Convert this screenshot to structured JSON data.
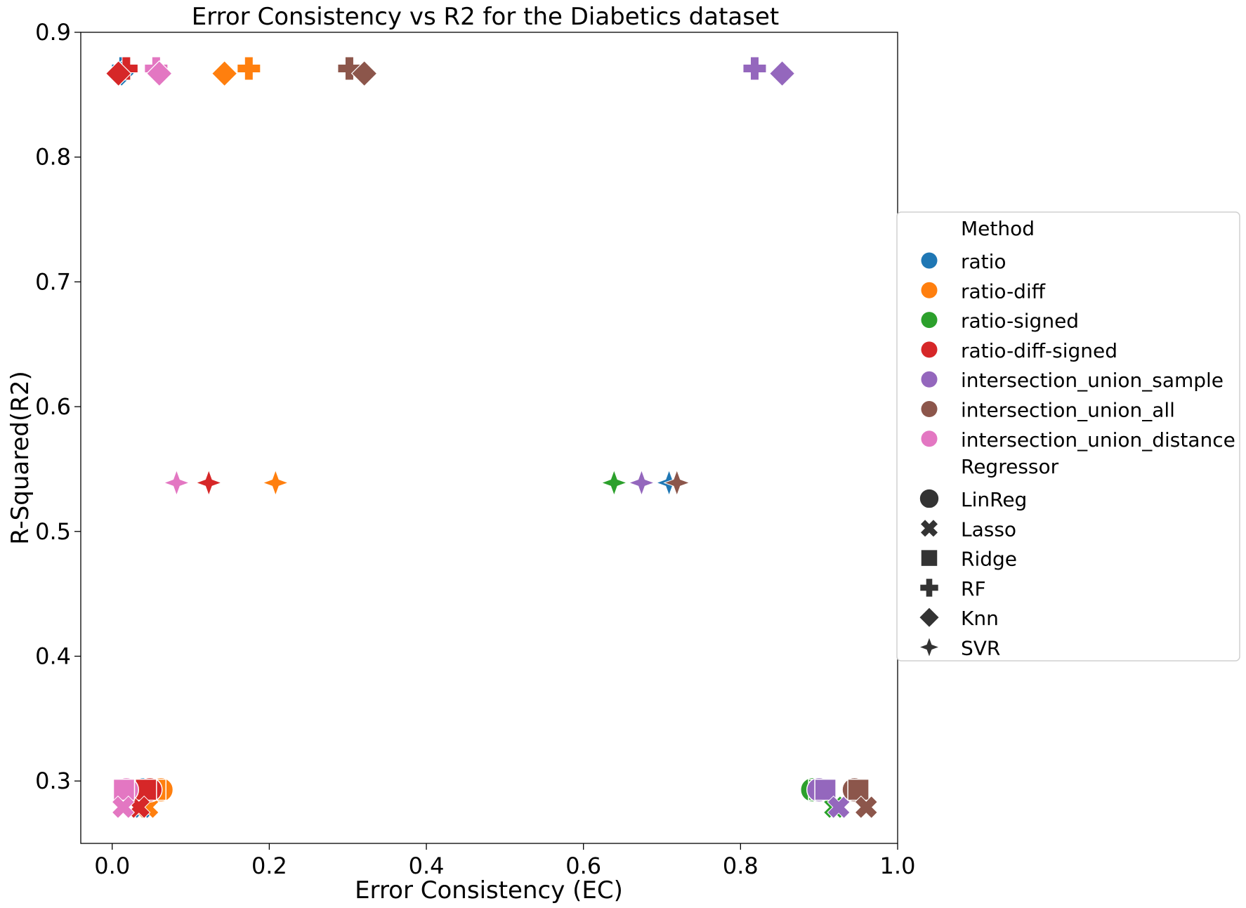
{
  "chart_data": {
    "type": "scatter",
    "title": "Error Consistency vs R2 for the Diabetics dataset",
    "xlabel": "Error Consistency (EC)",
    "ylabel": "R-Squared(R2)",
    "xlim": [
      -0.04,
      1.0
    ],
    "ylim": [
      0.25,
      0.9
    ],
    "xticks": [
      0.0,
      0.2,
      0.4,
      0.6,
      0.8,
      1.0
    ],
    "xtick_labels": [
      "0.0",
      "0.2",
      "0.4",
      "0.6",
      "0.8",
      "1.0"
    ],
    "yticks": [
      0.3,
      0.4,
      0.5,
      0.6,
      0.7,
      0.8,
      0.9
    ],
    "ytick_labels": [
      "0.3",
      "0.4",
      "0.5",
      "0.6",
      "0.7",
      "0.8",
      "0.9"
    ],
    "grid": false,
    "legend_position": "outside right",
    "legend": {
      "hue_title": "Method",
      "style_title": "Regressor",
      "methods": [
        {
          "name": "ratio",
          "color": "#1f77b4"
        },
        {
          "name": "ratio-diff",
          "color": "#ff7f0e"
        },
        {
          "name": "ratio-signed",
          "color": "#2ca02c"
        },
        {
          "name": "ratio-diff-signed",
          "color": "#d62728"
        },
        {
          "name": "intersection_union_sample",
          "color": "#9467bd"
        },
        {
          "name": "intersection_union_all",
          "color": "#8c564b"
        },
        {
          "name": "intersection_union_distance",
          "color": "#e377c2"
        }
      ],
      "regressors": [
        {
          "name": "LinReg",
          "marker": "circle"
        },
        {
          "name": "Lasso",
          "marker": "x"
        },
        {
          "name": "Ridge",
          "marker": "square"
        },
        {
          "name": "RF",
          "marker": "plus"
        },
        {
          "name": "Knn",
          "marker": "diamond"
        },
        {
          "name": "SVR",
          "marker": "star4"
        }
      ]
    },
    "points": [
      {
        "method": "ratio",
        "regressor": "LinReg",
        "x": 0.04,
        "y": 0.293
      },
      {
        "method": "ratio",
        "regressor": "Ridge",
        "x": 0.045,
        "y": 0.293
      },
      {
        "method": "ratio",
        "regressor": "Lasso",
        "x": 0.038,
        "y": 0.279
      },
      {
        "method": "ratio",
        "regressor": "RF",
        "x": 0.014,
        "y": 0.871
      },
      {
        "method": "ratio",
        "regressor": "Knn",
        "x": 0.012,
        "y": 0.867
      },
      {
        "method": "ratio",
        "regressor": "SVR",
        "x": 0.709,
        "y": 0.539
      },
      {
        "method": "ratio-diff",
        "regressor": "LinReg",
        "x": 0.062,
        "y": 0.293
      },
      {
        "method": "ratio-diff",
        "regressor": "Ridge",
        "x": 0.055,
        "y": 0.293
      },
      {
        "method": "ratio-diff",
        "regressor": "Lasso",
        "x": 0.045,
        "y": 0.279
      },
      {
        "method": "ratio-diff",
        "regressor": "RF",
        "x": 0.174,
        "y": 0.871
      },
      {
        "method": "ratio-diff",
        "regressor": "Knn",
        "x": 0.143,
        "y": 0.867
      },
      {
        "method": "ratio-diff",
        "regressor": "SVR",
        "x": 0.208,
        "y": 0.539
      },
      {
        "method": "ratio-signed",
        "regressor": "LinReg",
        "x": 0.892,
        "y": 0.293
      },
      {
        "method": "ratio-signed",
        "regressor": "Ridge",
        "x": 0.9,
        "y": 0.293
      },
      {
        "method": "ratio-signed",
        "regressor": "Lasso",
        "x": 0.92,
        "y": 0.279
      },
      {
        "method": "ratio-signed",
        "regressor": "SVR",
        "x": 0.639,
        "y": 0.539
      },
      {
        "method": "ratio-diff-signed",
        "regressor": "LinReg",
        "x": 0.048,
        "y": 0.293
      },
      {
        "method": "ratio-diff-signed",
        "regressor": "Ridge",
        "x": 0.043,
        "y": 0.293
      },
      {
        "method": "ratio-diff-signed",
        "regressor": "Lasso",
        "x": 0.034,
        "y": 0.279
      },
      {
        "method": "ratio-diff-signed",
        "regressor": "RF",
        "x": 0.018,
        "y": 0.871
      },
      {
        "method": "ratio-diff-signed",
        "regressor": "Knn",
        "x": 0.008,
        "y": 0.867
      },
      {
        "method": "ratio-diff-signed",
        "regressor": "SVR",
        "x": 0.123,
        "y": 0.539
      },
      {
        "method": "intersection_union_sample",
        "regressor": "LinReg",
        "x": 0.9,
        "y": 0.293
      },
      {
        "method": "intersection_union_sample",
        "regressor": "Ridge",
        "x": 0.908,
        "y": 0.293
      },
      {
        "method": "intersection_union_sample",
        "regressor": "Lasso",
        "x": 0.925,
        "y": 0.279
      },
      {
        "method": "intersection_union_sample",
        "regressor": "RF",
        "x": 0.818,
        "y": 0.871
      },
      {
        "method": "intersection_union_sample",
        "regressor": "Knn",
        "x": 0.853,
        "y": 0.867
      },
      {
        "method": "intersection_union_sample",
        "regressor": "SVR",
        "x": 0.674,
        "y": 0.539
      },
      {
        "method": "intersection_union_all",
        "regressor": "LinReg",
        "x": 0.945,
        "y": 0.293
      },
      {
        "method": "intersection_union_all",
        "regressor": "Ridge",
        "x": 0.95,
        "y": 0.293
      },
      {
        "method": "intersection_union_all",
        "regressor": "Lasso",
        "x": 0.96,
        "y": 0.279
      },
      {
        "method": "intersection_union_all",
        "regressor": "RF",
        "x": 0.302,
        "y": 0.871
      },
      {
        "method": "intersection_union_all",
        "regressor": "Knn",
        "x": 0.321,
        "y": 0.867
      },
      {
        "method": "intersection_union_all",
        "regressor": "SVR",
        "x": 0.719,
        "y": 0.539
      },
      {
        "method": "intersection_union_distance",
        "regressor": "LinReg",
        "x": 0.018,
        "y": 0.293
      },
      {
        "method": "intersection_union_distance",
        "regressor": "Ridge",
        "x": 0.015,
        "y": 0.293
      },
      {
        "method": "intersection_union_distance",
        "regressor": "Lasso",
        "x": 0.014,
        "y": 0.279
      },
      {
        "method": "intersection_union_distance",
        "regressor": "RF",
        "x": 0.056,
        "y": 0.871
      },
      {
        "method": "intersection_union_distance",
        "regressor": "Knn",
        "x": 0.06,
        "y": 0.867
      },
      {
        "method": "intersection_union_distance",
        "regressor": "SVR",
        "x": 0.082,
        "y": 0.539
      }
    ]
  }
}
